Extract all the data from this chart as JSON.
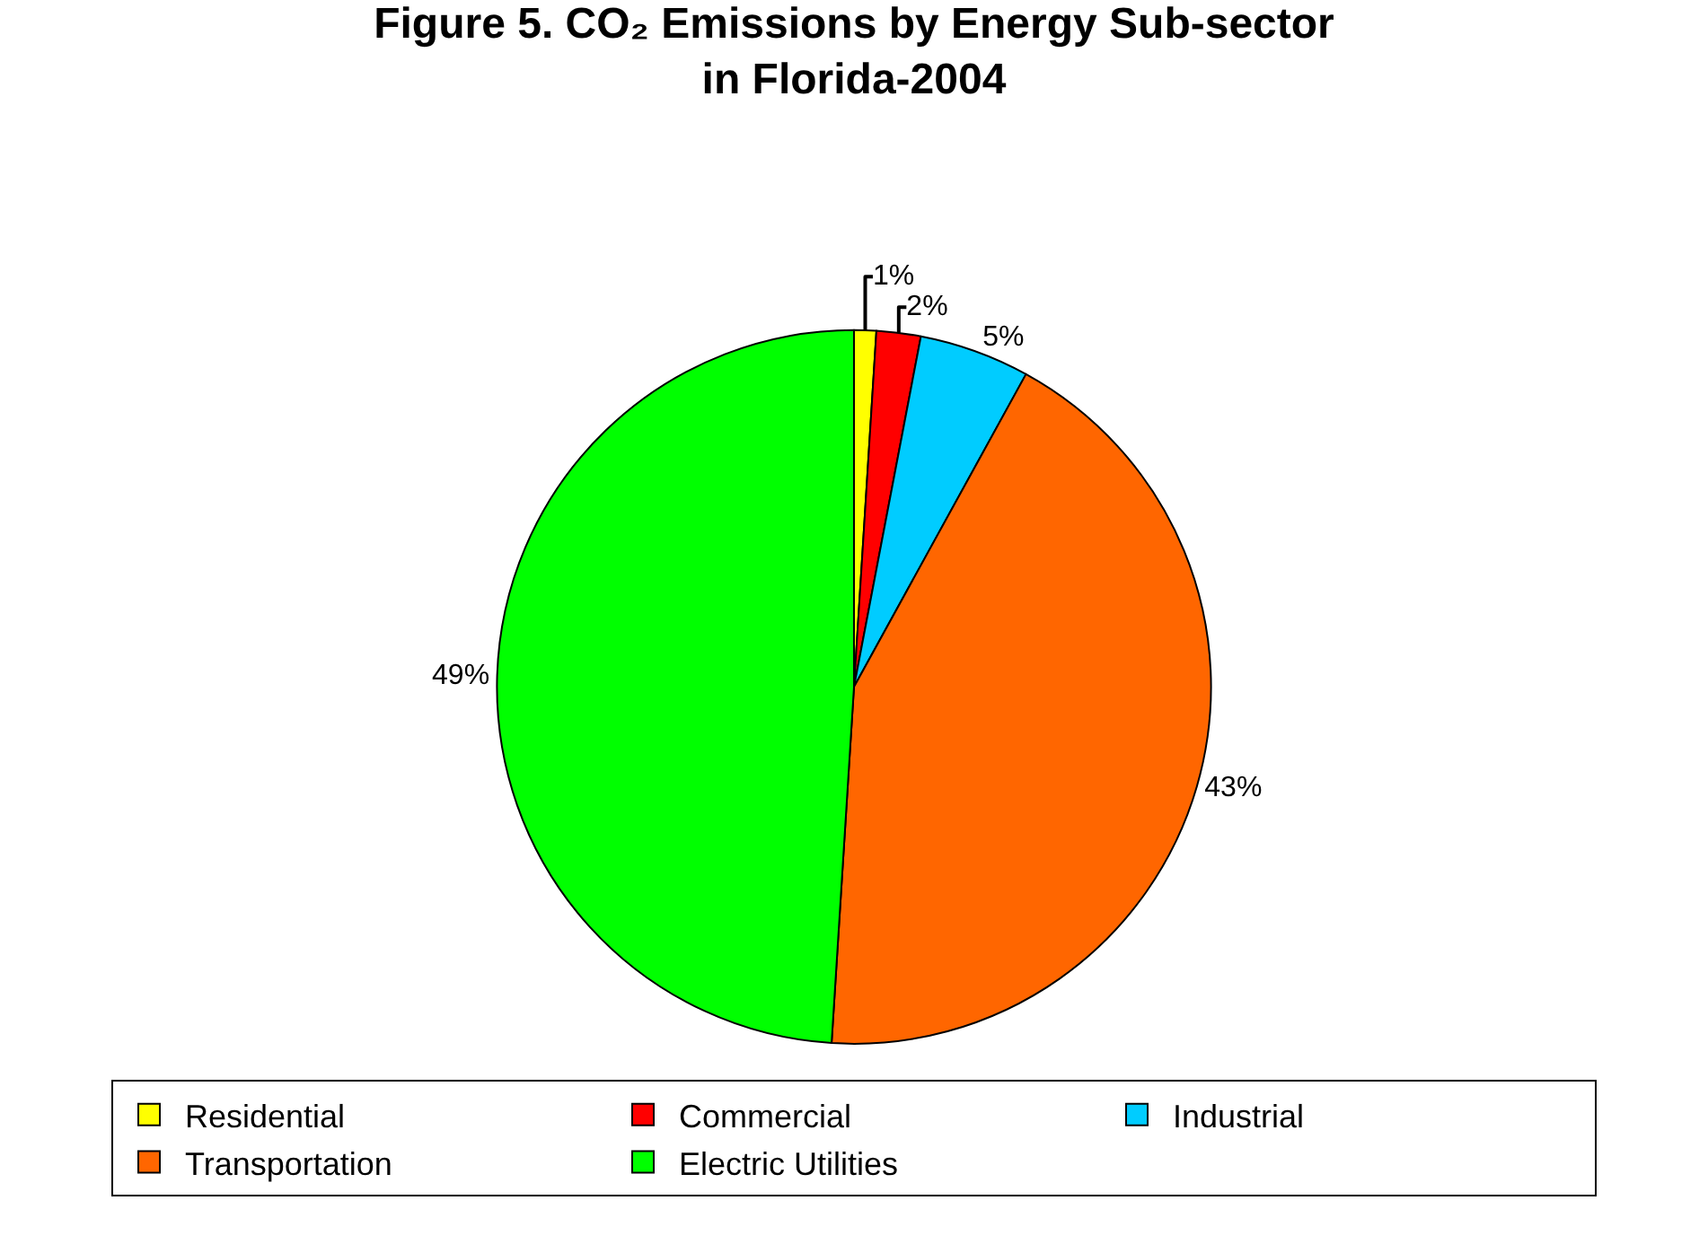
{
  "chart_data": {
    "type": "pie",
    "title": "Figure 5. CO₂ Emissions by Energy Sub-sector\nin Florida-2004",
    "categories": [
      "Residential",
      "Commercial",
      "Industrial",
      "Transportation",
      "Electric Utilities"
    ],
    "values": [
      1,
      2,
      5,
      43,
      49
    ],
    "colors": [
      "#ffff00",
      "#ff0000",
      "#00ccff",
      "#ff6600",
      "#00ff00"
    ],
    "value_labels": [
      "1%",
      "2%",
      "5%",
      "43%",
      "49%"
    ],
    "legend": "bottom"
  }
}
